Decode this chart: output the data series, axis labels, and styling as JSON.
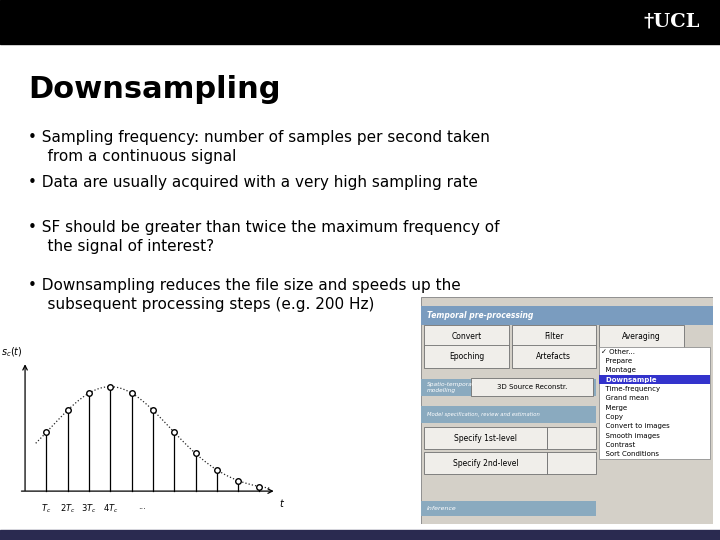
{
  "title": "Downsampling",
  "title_fontsize": 22,
  "bg_color": "#ffffff",
  "header_color": "#000000",
  "header_logo_text": "†UCL",
  "bullet_points": [
    "Sampling frequency: number of samples per second taken\n    from a continuous signal",
    "Data are usually acquired with a very high sampling rate",
    "SF should be greater than twice the maximum frequency of\n    the signal of interest?",
    "Downsampling reduces the file size and speeds up the\n    subsequent processing steps (e.g. 200 Hz)"
  ],
  "bullet_fontsize": 11,
  "gui_bg": "#d4d0c8",
  "gui_title_bg": "#7a9cbf",
  "gui_section_bg": "#8aaabf",
  "gui_btn_bg": "#f0eeea",
  "gui_highlight": "#3333cc",
  "footer_color": "#2a2a50"
}
